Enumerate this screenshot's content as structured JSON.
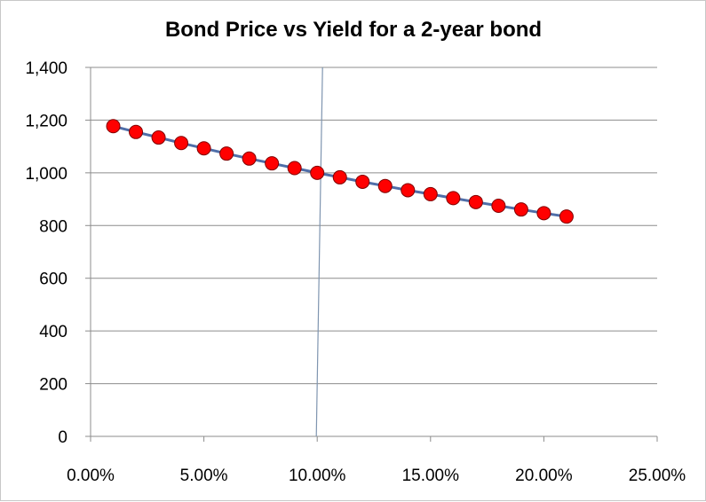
{
  "chart_data": {
    "type": "scatter",
    "title": "Bond Price vs Yield for a 2-year bond",
    "xlabel": "",
    "ylabel": "",
    "xlim": [
      0,
      0.25
    ],
    "ylim": [
      0,
      1400
    ],
    "x_ticks": [
      0,
      0.05,
      0.1,
      0.15,
      0.2,
      0.25
    ],
    "x_tick_labels": [
      "0.00%",
      "5.00%",
      "10.00%",
      "15.00%",
      "20.00%",
      "25.00%"
    ],
    "y_ticks": [
      0,
      200,
      400,
      600,
      800,
      1000,
      1200,
      1400
    ],
    "y_tick_labels": [
      "0",
      "200",
      "400",
      "600",
      "800",
      "1,000",
      "1,200",
      "1,400"
    ],
    "grid": "horizontal",
    "legend": "none",
    "reference_line_x": 0.1,
    "series": [
      {
        "x": [
          0.01,
          0.02,
          0.03,
          0.04,
          0.05,
          0.06,
          0.07,
          0.08,
          0.09,
          0.1,
          0.11,
          0.12,
          0.13,
          0.14,
          0.15,
          0.16,
          0.17,
          0.18,
          0.19,
          0.2,
          0.21
        ],
        "y": [
          1177,
          1155,
          1134,
          1113,
          1093,
          1073,
          1054,
          1036,
          1018,
          1000,
          983,
          966,
          950,
          934,
          919,
          904,
          889,
          875,
          861,
          847,
          834
        ],
        "marker_color": "#ff0000",
        "marker_edge": "#800000",
        "line_color": "#4f6ea8"
      }
    ]
  }
}
